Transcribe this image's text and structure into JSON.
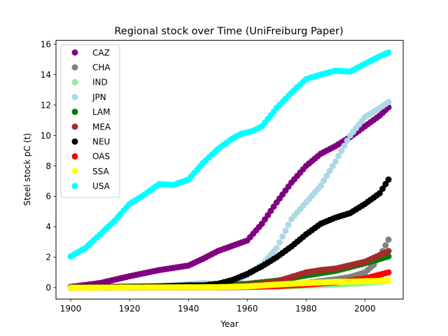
{
  "chart_data": {
    "type": "scatter",
    "title": "Regional stock over Time (UniFreiburg Paper)",
    "xlabel": "Year",
    "ylabel": "Steel stock pC (t)",
    "xlim": [
      1895,
      2013
    ],
    "ylim": [
      -0.75,
      16.25
    ],
    "xticks": [
      1900,
      1920,
      1940,
      1960,
      1980,
      2000
    ],
    "yticks": [
      0,
      2,
      4,
      6,
      8,
      10,
      12,
      14,
      16
    ],
    "grid": false,
    "legend_position": "top-left",
    "marker": "circle",
    "x_start": 1900,
    "x_end": 2008,
    "series": [
      {
        "name": "CAZ",
        "color": "#800080",
        "points": [
          [
            1900,
            0.05
          ],
          [
            1910,
            0.3
          ],
          [
            1920,
            0.75
          ],
          [
            1930,
            1.15
          ],
          [
            1940,
            1.45
          ],
          [
            1945,
            1.9
          ],
          [
            1950,
            2.4
          ],
          [
            1955,
            2.75
          ],
          [
            1960,
            3.1
          ],
          [
            1965,
            4.2
          ],
          [
            1970,
            5.6
          ],
          [
            1975,
            6.9
          ],
          [
            1980,
            8.0
          ],
          [
            1985,
            8.8
          ],
          [
            1990,
            9.3
          ],
          [
            1995,
            9.9
          ],
          [
            2000,
            10.6
          ],
          [
            2005,
            11.3
          ],
          [
            2008,
            11.85
          ]
        ]
      },
      {
        "name": "CHA",
        "color": "#808080",
        "points": [
          [
            1900,
            0.0
          ],
          [
            1950,
            0.02
          ],
          [
            1960,
            0.05
          ],
          [
            1970,
            0.1
          ],
          [
            1980,
            0.3
          ],
          [
            1990,
            0.55
          ],
          [
            1995,
            0.7
          ],
          [
            2000,
            1.0
          ],
          [
            2003,
            1.5
          ],
          [
            2006,
            2.4
          ],
          [
            2008,
            3.15
          ]
        ]
      },
      {
        "name": "IND",
        "color": "#90ee90",
        "points": [
          [
            1900,
            0.0
          ],
          [
            1950,
            0.02
          ],
          [
            1960,
            0.04
          ],
          [
            1970,
            0.07
          ],
          [
            1980,
            0.12
          ],
          [
            1990,
            0.2
          ],
          [
            2000,
            0.3
          ],
          [
            2008,
            0.45
          ]
        ]
      },
      {
        "name": "JPN",
        "color": "#add8e6",
        "points": [
          [
            1900,
            0.0
          ],
          [
            1920,
            0.02
          ],
          [
            1935,
            0.15
          ],
          [
            1945,
            0.3
          ],
          [
            1950,
            0.25
          ],
          [
            1955,
            0.4
          ],
          [
            1960,
            0.8
          ],
          [
            1965,
            1.5
          ],
          [
            1970,
            2.6
          ],
          [
            1975,
            4.5
          ],
          [
            1980,
            5.6
          ],
          [
            1985,
            6.7
          ],
          [
            1990,
            8.3
          ],
          [
            1995,
            10.0
          ],
          [
            2000,
            11.2
          ],
          [
            2005,
            11.8
          ],
          [
            2008,
            12.2
          ]
        ]
      },
      {
        "name": "LAM",
        "color": "#008000",
        "points": [
          [
            1900,
            0.02
          ],
          [
            1920,
            0.05
          ],
          [
            1940,
            0.1
          ],
          [
            1950,
            0.15
          ],
          [
            1960,
            0.25
          ],
          [
            1970,
            0.45
          ],
          [
            1980,
            0.8
          ],
          [
            1990,
            1.1
          ],
          [
            2000,
            1.6
          ],
          [
            2008,
            2.05
          ]
        ]
      },
      {
        "name": "MEA",
        "color": "#a52a2a",
        "points": [
          [
            1900,
            0.0
          ],
          [
            1940,
            0.02
          ],
          [
            1950,
            0.05
          ],
          [
            1960,
            0.15
          ],
          [
            1970,
            0.4
          ],
          [
            1975,
            0.7
          ],
          [
            1980,
            1.0
          ],
          [
            1985,
            1.15
          ],
          [
            1990,
            1.25
          ],
          [
            2000,
            1.7
          ],
          [
            2008,
            2.4
          ]
        ]
      },
      {
        "name": "NEU",
        "color": "#000000",
        "points": [
          [
            1900,
            0.02
          ],
          [
            1930,
            0.08
          ],
          [
            1940,
            0.15
          ],
          [
            1945,
            0.15
          ],
          [
            1950,
            0.25
          ],
          [
            1955,
            0.5
          ],
          [
            1960,
            0.9
          ],
          [
            1965,
            1.4
          ],
          [
            1970,
            2.0
          ],
          [
            1975,
            2.7
          ],
          [
            1980,
            3.5
          ],
          [
            1985,
            4.2
          ],
          [
            1990,
            4.6
          ],
          [
            1995,
            4.9
          ],
          [
            2000,
            5.5
          ],
          [
            2005,
            6.2
          ],
          [
            2008,
            7.1
          ]
        ]
      },
      {
        "name": "OAS",
        "color": "#ff0000",
        "points": [
          [
            1900,
            0.0
          ],
          [
            1950,
            0.02
          ],
          [
            1960,
            0.05
          ],
          [
            1970,
            0.1
          ],
          [
            1980,
            0.2
          ],
          [
            1990,
            0.35
          ],
          [
            2000,
            0.6
          ],
          [
            2005,
            0.85
          ],
          [
            2008,
            1.0
          ]
        ]
      },
      {
        "name": "SSA",
        "color": "#ffff00",
        "points": [
          [
            1900,
            0.0
          ],
          [
            1950,
            0.03
          ],
          [
            1960,
            0.08
          ],
          [
            1970,
            0.2
          ],
          [
            1980,
            0.3
          ],
          [
            1990,
            0.38
          ],
          [
            2000,
            0.42
          ],
          [
            2008,
            0.45
          ]
        ]
      },
      {
        "name": "USA",
        "color": "#00ffff",
        "points": [
          [
            1900,
            2.05
          ],
          [
            1905,
            2.6
          ],
          [
            1910,
            3.5
          ],
          [
            1915,
            4.4
          ],
          [
            1920,
            5.5
          ],
          [
            1925,
            6.1
          ],
          [
            1930,
            6.8
          ],
          [
            1935,
            6.75
          ],
          [
            1940,
            7.1
          ],
          [
            1945,
            8.2
          ],
          [
            1950,
            9.1
          ],
          [
            1955,
            9.8
          ],
          [
            1958,
            10.1
          ],
          [
            1962,
            10.3
          ],
          [
            1965,
            10.6
          ],
          [
            1970,
            11.8
          ],
          [
            1975,
            12.8
          ],
          [
            1980,
            13.7
          ],
          [
            1985,
            14.0
          ],
          [
            1990,
            14.25
          ],
          [
            1995,
            14.2
          ],
          [
            2000,
            14.7
          ],
          [
            2005,
            15.2
          ],
          [
            2008,
            15.45
          ]
        ]
      }
    ]
  }
}
